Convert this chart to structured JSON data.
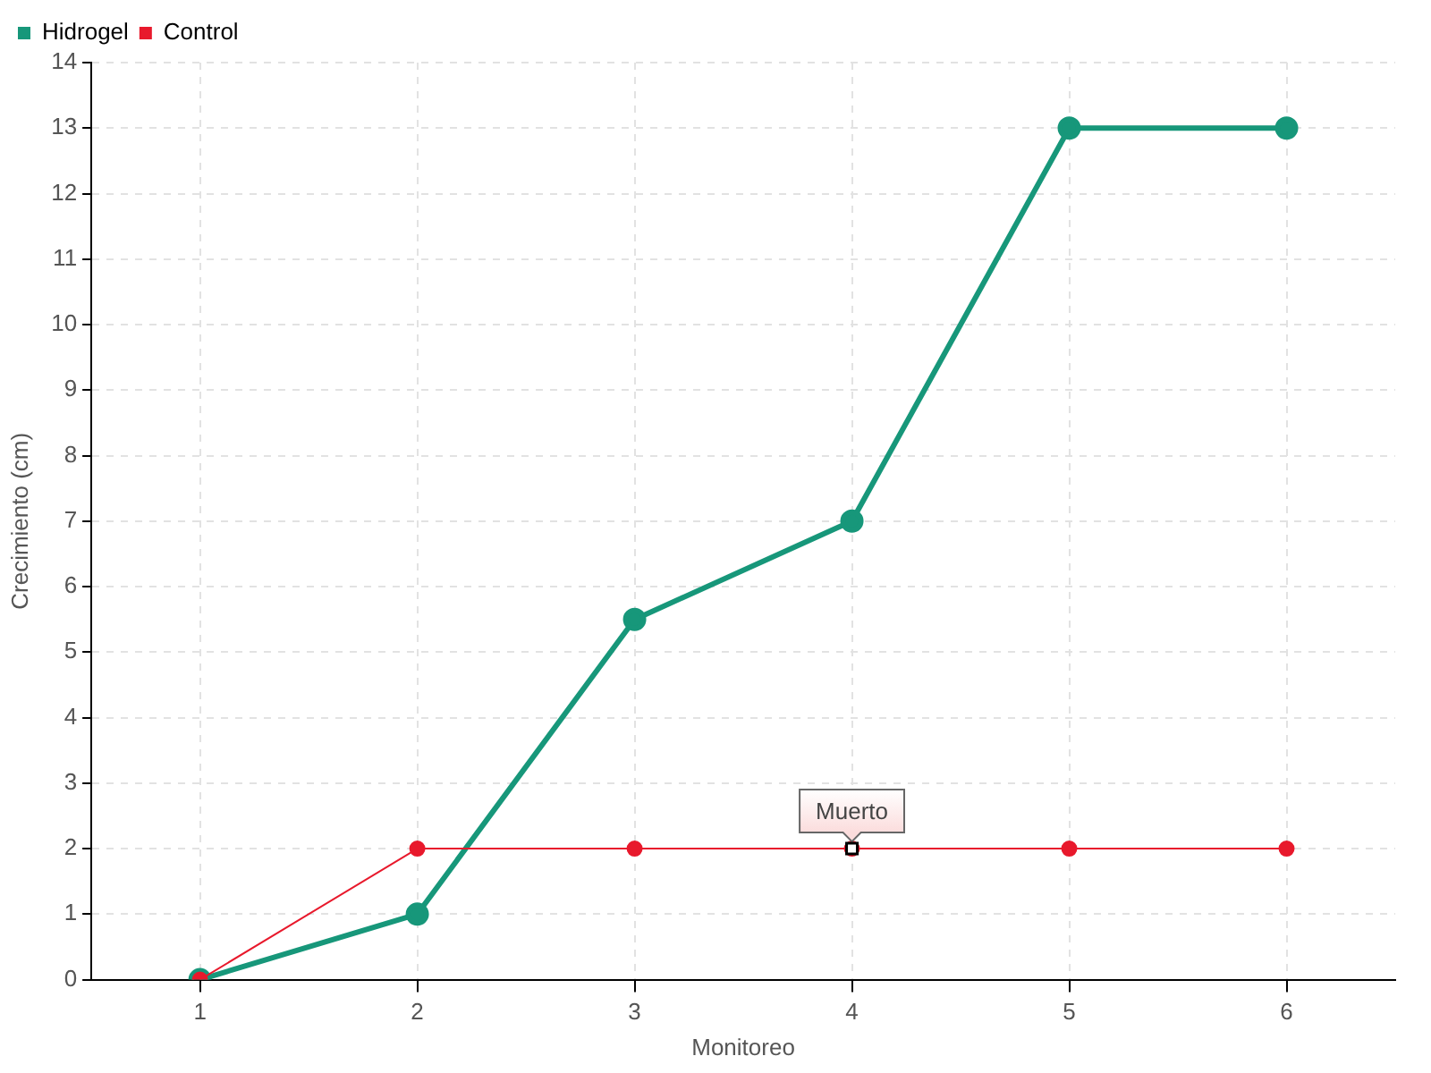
{
  "chart_data": {
    "type": "line",
    "xlabel": "Monitoreo",
    "ylabel": "Crecimiento (cm)",
    "categories": [
      "1",
      "2",
      "3",
      "4",
      "5",
      "6"
    ],
    "series": [
      {
        "name": "Hidrogel",
        "color": "#17977a",
        "values": [
          0,
          1,
          5.5,
          7,
          13,
          13
        ]
      },
      {
        "name": "Control",
        "color": "#e8192c",
        "values": [
          0,
          2,
          2,
          2,
          2,
          2
        ]
      }
    ],
    "ylim": [
      0,
      14
    ],
    "yticks": [
      0,
      1,
      2,
      3,
      4,
      5,
      6,
      7,
      8,
      9,
      10,
      11,
      12,
      13,
      14
    ],
    "grid": true,
    "legend": "top left",
    "marker": "circle",
    "line_style": "solid",
    "annotations": [
      {
        "text": "Muerto",
        "x": "4",
        "y": 2
      }
    ]
  }
}
